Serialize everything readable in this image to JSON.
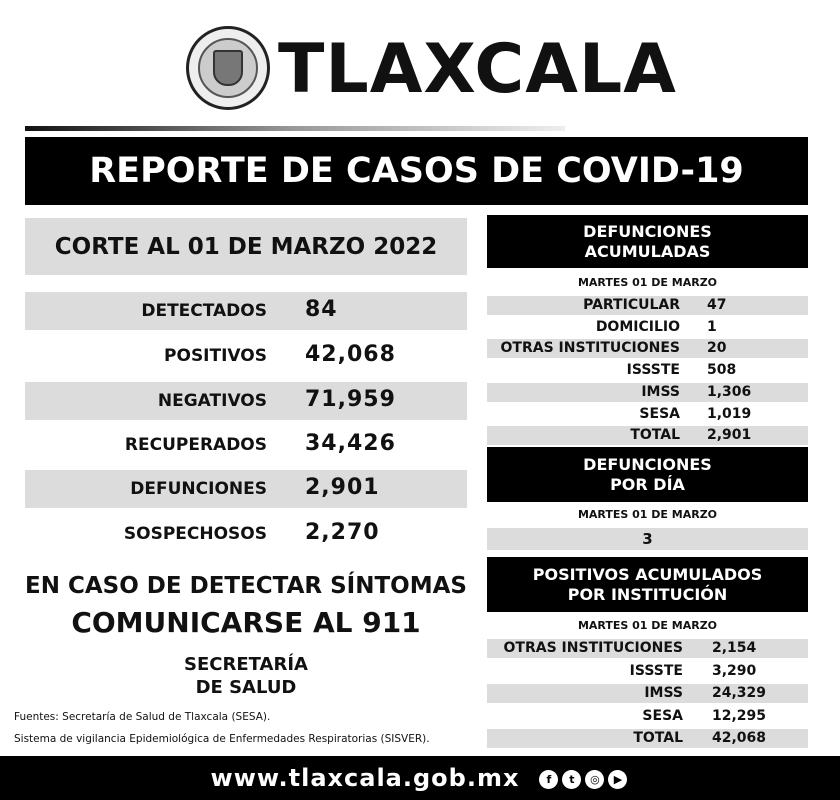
{
  "header": {
    "brand": "TLAXCALA",
    "title": "REPORTE DE CASOS DE COVID-19"
  },
  "left": {
    "cut_date": "CORTE AL 01 DE MARZO 2022",
    "stats": [
      {
        "label": "DETECTADOS",
        "value": "84"
      },
      {
        "label": "POSITIVOS",
        "value": "42,068"
      },
      {
        "label": "NEGATIVOS",
        "value": "71,959"
      },
      {
        "label": "RECUPERADOS",
        "value": "34,426"
      },
      {
        "label": "DEFUNCIONES",
        "value": "2,901"
      },
      {
        "label": "SOSPECHOSOS",
        "value": "2,270"
      }
    ],
    "notice_1": "EN CASO DE DETECTAR SÍNTOMAS",
    "notice_2": "COMUNICARSE AL 911",
    "secretaria_1": "SECRETARÍA",
    "secretaria_2": "DE SALUD",
    "source_1": "Fuentes:  Secretaría de Salud de Tlaxcala (SESA).",
    "source_2": "Sistema de vigilancia Epidemiológica de Enfermedades Respiratorias (SISVER)."
  },
  "def_acum": {
    "title_1": "DEFUNCIONES",
    "title_2": "ACUMULADAS",
    "date": "MARTES 01 DE MARZO",
    "rows": [
      {
        "label": "PARTICULAR",
        "value": "47"
      },
      {
        "label": "DOMICILIO",
        "value": "1"
      },
      {
        "label": "OTRAS INSTITUCIONES",
        "value": "20"
      },
      {
        "label": "ISSSTE",
        "value": "508"
      },
      {
        "label": "IMSS",
        "value": "1,306"
      },
      {
        "label": "SESA",
        "value": "1,019"
      },
      {
        "label": "TOTAL",
        "value": "2,901"
      }
    ]
  },
  "def_dia": {
    "title_1": "DEFUNCIONES",
    "title_2": "POR DÍA",
    "date": "MARTES 01 DE MARZO",
    "value": "3"
  },
  "pos_acum": {
    "title_1": "POSITIVOS ACUMULADOS",
    "title_2": "POR INSTITUCIÓN",
    "date": "MARTES 01 DE MARZO",
    "rows": [
      {
        "label": "OTRAS INSTITUCIONES",
        "value": "2,154"
      },
      {
        "label": "ISSSTE",
        "value": "3,290"
      },
      {
        "label": "IMSS",
        "value": "24,329"
      },
      {
        "label": "SESA",
        "value": "12,295"
      },
      {
        "label": "TOTAL",
        "value": "42,068"
      }
    ]
  },
  "footer": {
    "url": "www.tlaxcala.gob.mx",
    "social": [
      {
        "icon": "facebook-icon",
        "glyph": "f"
      },
      {
        "icon": "twitter-icon",
        "glyph": "t"
      },
      {
        "icon": "instagram-icon",
        "glyph": "◎"
      },
      {
        "icon": "youtube-icon",
        "glyph": "▶"
      }
    ]
  }
}
